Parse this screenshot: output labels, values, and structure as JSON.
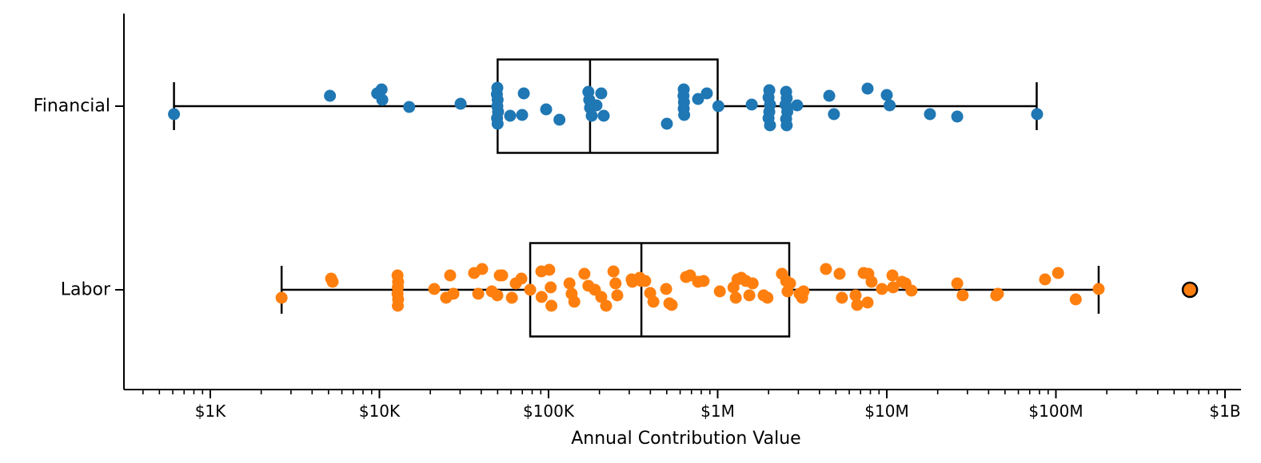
{
  "chart_data": {
    "type": "boxplot_strip",
    "orientation": "horizontal",
    "title": "",
    "xlabel": "Annual Contribution Value",
    "ylabel": "",
    "x_scale": "log",
    "xlim": [
      308,
      1230000000
    ],
    "grid": false,
    "legend": "none",
    "categories": [
      "Financial",
      "Labor"
    ],
    "x_ticks": [
      {
        "label": "$1K",
        "value": 1000
      },
      {
        "label": "$10K",
        "value": 10000
      },
      {
        "label": "$100K",
        "value": 100000
      },
      {
        "label": "$1M",
        "value": 1000000
      },
      {
        "label": "$10M",
        "value": 10000000
      },
      {
        "label": "$100M",
        "value": 100000000
      },
      {
        "label": "$1B",
        "value": 1000000000
      }
    ],
    "series": [
      {
        "name": "Financial",
        "color": "#1f77b4",
        "box": {
          "whisker_low": 610,
          "q1": 50000,
          "median": 176000,
          "q3": 1000000,
          "whisker_high": 77000000
        },
        "fliers": [],
        "points": [
          [
            610,
            10
          ],
          [
            5100,
            -13
          ],
          [
            9700,
            -16
          ],
          [
            10300,
            -21
          ],
          [
            10400,
            -8
          ],
          [
            15000,
            1
          ],
          [
            30200,
            -3
          ],
          [
            49800,
            -23
          ],
          [
            49500,
            -15
          ],
          [
            50000,
            -8
          ],
          [
            49800,
            0
          ],
          [
            50300,
            7
          ],
          [
            49600,
            15
          ],
          [
            50000,
            22
          ],
          [
            59300,
            12
          ],
          [
            69800,
            11
          ],
          [
            71400,
            -16
          ],
          [
            96800,
            4
          ],
          [
            116000,
            17
          ],
          [
            172000,
            -18
          ],
          [
            174000,
            -8
          ],
          [
            176000,
            2
          ],
          [
            180000,
            12
          ],
          [
            192000,
            -1
          ],
          [
            205000,
            -16
          ],
          [
            212000,
            12
          ],
          [
            501000,
            22
          ],
          [
            630000,
            -21
          ],
          [
            628000,
            -13
          ],
          [
            632000,
            -5
          ],
          [
            630000,
            3
          ],
          [
            634000,
            11
          ],
          [
            766000,
            -9
          ],
          [
            863000,
            -16
          ],
          [
            1010000,
            0
          ],
          [
            1590000,
            -2
          ],
          [
            2020000,
            -20
          ],
          [
            2000000,
            -11
          ],
          [
            2040000,
            -2
          ],
          [
            2020000,
            7
          ],
          [
            2000000,
            15
          ],
          [
            2040000,
            24
          ],
          [
            2540000,
            -18
          ],
          [
            2560000,
            -10
          ],
          [
            2520000,
            -2
          ],
          [
            2580000,
            7
          ],
          [
            2540000,
            16
          ],
          [
            2560000,
            24
          ],
          [
            2950000,
            -1
          ],
          [
            4570000,
            -13
          ],
          [
            4870000,
            10
          ],
          [
            7700000,
            -22
          ],
          [
            10000000,
            -14
          ],
          [
            10400000,
            -1
          ],
          [
            18000000,
            10
          ],
          [
            26100000,
            13
          ],
          [
            77400000,
            10
          ]
        ]
      },
      {
        "name": "Labor",
        "color": "#ff7f0e",
        "box": {
          "whisker_low": 2640,
          "q1": 77900,
          "median": 354000,
          "q3": 2650000,
          "whisker_high": 179000000
        },
        "fliers": [
          620000000
        ],
        "points": [
          [
            2640,
            10
          ],
          [
            5180,
            -14
          ],
          [
            5290,
            -10
          ],
          [
            12800,
            -18
          ],
          [
            12900,
            -10
          ],
          [
            12850,
            -3
          ],
          [
            12800,
            5
          ],
          [
            12900,
            12
          ],
          [
            12850,
            20
          ],
          [
            21100,
            -1
          ],
          [
            24800,
            10
          ],
          [
            26200,
            -18
          ],
          [
            27400,
            5
          ],
          [
            36300,
            -21
          ],
          [
            38400,
            5
          ],
          [
            40500,
            -26
          ],
          [
            46200,
            2
          ],
          [
            49800,
            7
          ],
          [
            51500,
            -18
          ],
          [
            53200,
            -18
          ],
          [
            60700,
            10
          ],
          [
            64000,
            -8
          ],
          [
            69100,
            -14
          ],
          [
            77900,
            0
          ],
          [
            90700,
            -23
          ],
          [
            91000,
            9
          ],
          [
            101000,
            -25
          ],
          [
            103000,
            -3
          ],
          [
            104000,
            20
          ],
          [
            133000,
            -8
          ],
          [
            137000,
            5
          ],
          [
            142000,
            15
          ],
          [
            163000,
            -20
          ],
          [
            172000,
            -5
          ],
          [
            188000,
            0
          ],
          [
            205000,
            9
          ],
          [
            219000,
            20
          ],
          [
            242000,
            -23
          ],
          [
            249000,
            -8
          ],
          [
            255000,
            7
          ],
          [
            310000,
            -13
          ],
          [
            313000,
            -10
          ],
          [
            346000,
            -15
          ],
          [
            354000,
            -11
          ],
          [
            373000,
            -11
          ],
          [
            399000,
            4
          ],
          [
            417000,
            15
          ],
          [
            496000,
            -1
          ],
          [
            518000,
            17
          ],
          [
            535000,
            19
          ],
          [
            650000,
            -16
          ],
          [
            687000,
            -18
          ],
          [
            766000,
            -10
          ],
          [
            826000,
            -11
          ],
          [
            1030000,
            2
          ],
          [
            1240000,
            -3
          ],
          [
            1280000,
            10
          ],
          [
            1310000,
            -13
          ],
          [
            1380000,
            -15
          ],
          [
            1470000,
            -11
          ],
          [
            1540000,
            7
          ],
          [
            1610000,
            -8
          ],
          [
            1870000,
            7
          ],
          [
            1970000,
            10
          ],
          [
            2400000,
            -20
          ],
          [
            2540000,
            -11
          ],
          [
            2590000,
            2
          ],
          [
            2680000,
            -8
          ],
          [
            3050000,
            5
          ],
          [
            3160000,
            10
          ],
          [
            3220000,
            2
          ],
          [
            4370000,
            -26
          ],
          [
            5260000,
            -20
          ],
          [
            5430000,
            10
          ],
          [
            6540000,
            7
          ],
          [
            6680000,
            19
          ],
          [
            7300000,
            -21
          ],
          [
            7700000,
            16
          ],
          [
            7780000,
            -20
          ],
          [
            8130000,
            -10
          ],
          [
            9360000,
            -1
          ],
          [
            10800000,
            -18
          ],
          [
            10900000,
            -3
          ],
          [
            12300000,
            -10
          ],
          [
            12900000,
            -8
          ],
          [
            14000000,
            1
          ],
          [
            26100000,
            -8
          ],
          [
            28100000,
            7
          ],
          [
            44400000,
            7
          ],
          [
            45400000,
            5
          ],
          [
            86300000,
            -13
          ],
          [
            103000000,
            -21
          ],
          [
            131000000,
            12
          ],
          [
            179000000,
            -1
          ]
        ]
      }
    ]
  }
}
